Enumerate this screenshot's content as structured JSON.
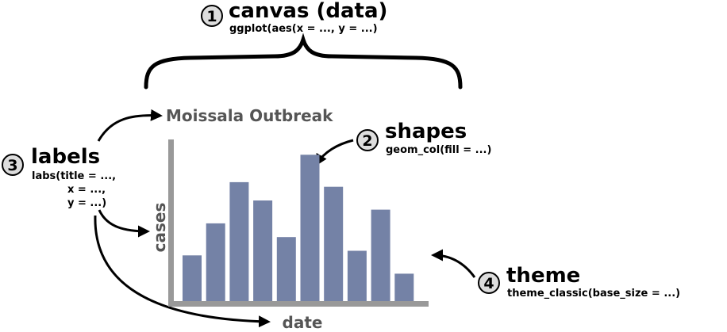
{
  "annotations": {
    "canvas": {
      "number": "1",
      "title": "canvas (data)",
      "code": "ggplot(aes(x = ..., y = ...)"
    },
    "shapes": {
      "number": "2",
      "title": "shapes",
      "code": "geom_col(fill = ...)"
    },
    "labels": {
      "number": "3",
      "title": "labels",
      "code_line1": "labs(title = ...,",
      "code_line2": "x = ...,",
      "code_line3": "y = ...)"
    },
    "theme": {
      "number": "4",
      "title": "theme",
      "code": "theme_classic(base_size = ...)"
    }
  },
  "colors": {
    "bar": "#7482a6",
    "axis": "#999999",
    "label_text": "#555555",
    "circle_fill": "#dddddd"
  },
  "chart_data": {
    "type": "bar",
    "title": "Moissala Outbreak",
    "xlabel": "date",
    "ylabel": "cases",
    "values": [
      1.0,
      1.7,
      2.6,
      2.2,
      1.4,
      3.2,
      2.5,
      1.1,
      2.0,
      0.6
    ],
    "ylim": [
      0,
      3.5
    ],
    "grid": false
  }
}
